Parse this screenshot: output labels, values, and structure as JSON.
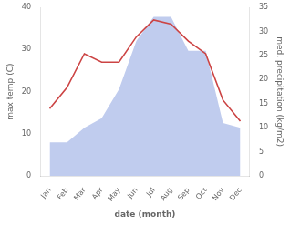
{
  "chart_data": {
    "type": "line",
    "xlabel": "date (month)",
    "ylabel": "max temp (C)",
    "y2label": "med. precipitation (kg/m2)",
    "categories": [
      "Jan",
      "Feb",
      "Mar",
      "Apr",
      "May",
      "Jun",
      "Jul",
      "Aug",
      "Sep",
      "Oct",
      "Nov",
      "Dec"
    ],
    "series": [
      {
        "type": "line",
        "color": "#cc4444",
        "values": [
          16,
          21,
          29,
          27,
          27,
          33,
          37,
          36,
          32,
          29,
          18,
          13
        ]
      },
      {
        "type": "area",
        "color": "#c0ccee",
        "axis": "y2",
        "values": [
          7,
          7,
          10,
          12,
          18,
          28,
          33,
          33,
          26,
          26,
          11,
          10
        ]
      }
    ],
    "ylim": [
      0,
      40
    ],
    "yticks": [
      0,
      10,
      20,
      30,
      40
    ],
    "y2lim": [
      0,
      35
    ],
    "y2ticks": [
      0,
      5,
      10,
      15,
      20,
      25,
      30,
      35
    ],
    "grid": false
  }
}
